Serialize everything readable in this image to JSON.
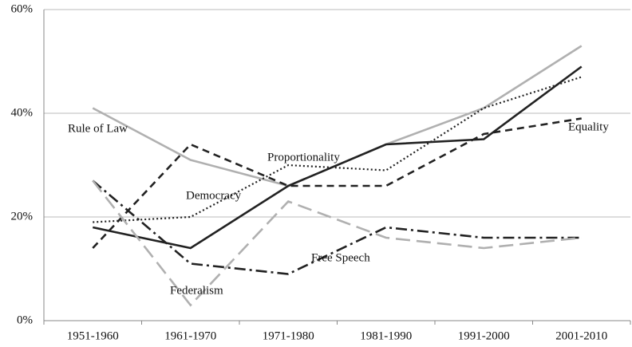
{
  "chart_data": {
    "type": "line",
    "categories": [
      "1951-1960",
      "1961-1970",
      "1971-1980",
      "1981-1990",
      "1991-2000",
      "2001-2010"
    ],
    "series": [
      {
        "name": "Rule of Law",
        "color": "#b0b0b0",
        "style": "solid",
        "values": [
          41,
          31,
          26,
          34,
          41,
          53
        ]
      },
      {
        "name": "Democracy",
        "color": "#222222",
        "style": "solid",
        "values": [
          18,
          14,
          26,
          34,
          35,
          49
        ]
      },
      {
        "name": "Proportionality",
        "color": "#222222",
        "style": "dotted",
        "values": [
          19,
          20,
          30,
          29,
          41,
          47
        ]
      },
      {
        "name": "Equality",
        "color": "#222222",
        "style": "dashed",
        "values": [
          14,
          34,
          26,
          26,
          36,
          39
        ]
      },
      {
        "name": "Free Speech",
        "color": "#222222",
        "style": "dash-dot",
        "values": [
          27,
          11,
          9,
          18,
          16,
          16
        ]
      },
      {
        "name": "Federalism",
        "color": "#b0b0b0",
        "style": "long-dash",
        "values": [
          27,
          3,
          23,
          16,
          14,
          16
        ]
      }
    ],
    "ylim": [
      0,
      60
    ],
    "yticks": [
      {
        "value": 0,
        "label": "0%"
      },
      {
        "value": 20,
        "label": "20%"
      },
      {
        "value": 40,
        "label": "40%"
      },
      {
        "value": 60,
        "label": "60%"
      }
    ],
    "grid": true
  }
}
